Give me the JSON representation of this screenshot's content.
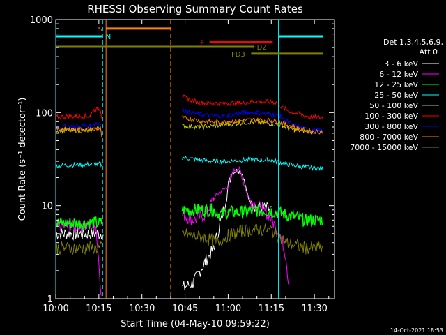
{
  "chart_data": {
    "type": "line",
    "title": "RHESSI Observing Summary Count Rates",
    "xlabel": "Start Time (04-May-10 09:59:22)",
    "ylabel": "Count Rate (s⁻¹ detector⁻¹)",
    "footer": "14-Oct-2021 18:53",
    "y_scale": "log",
    "ylim": [
      1,
      1000
    ],
    "xlim_minutes": [
      0,
      97
    ],
    "x_ticks": [
      {
        "m": 0,
        "label": "10:00"
      },
      {
        "m": 15,
        "label": "10:15"
      },
      {
        "m": 30,
        "label": "10:30"
      },
      {
        "m": 45,
        "label": "10:45"
      },
      {
        "m": 60,
        "label": "11:00"
      },
      {
        "m": 75,
        "label": "11:15"
      },
      {
        "m": 90,
        "label": "11:30"
      }
    ],
    "y_ticks": [
      {
        "v": 1,
        "label": "1"
      },
      {
        "v": 10,
        "label": "10"
      },
      {
        "v": 100,
        "label": "100"
      },
      {
        "v": 1000,
        "label": "1000"
      }
    ],
    "legend_header": [
      "Det 1,3,4,5,6,9,",
      "Att 0"
    ],
    "series": [
      {
        "name": "3 - 6 keV",
        "color": "#ffffff",
        "points": [
          [
            0,
            5
          ],
          [
            16.5,
            5
          ],
          [
            16.5,
            null
          ],
          [
            43.5,
            null
          ],
          [
            44,
            1.3
          ],
          [
            48,
            1.5
          ],
          [
            52,
            2.5
          ],
          [
            55,
            3.5
          ],
          [
            58,
            8
          ],
          [
            61,
            22
          ],
          [
            63,
            24
          ],
          [
            65,
            22
          ],
          [
            67,
            12
          ],
          [
            69,
            10
          ],
          [
            72,
            9.5
          ],
          [
            75,
            9
          ]
        ]
      },
      {
        "name": "6 - 12 keV",
        "color": "#ff00ff",
        "points": [
          [
            0,
            6
          ],
          [
            14,
            6
          ],
          [
            16,
            1
          ],
          [
            16.5,
            null
          ],
          [
            43.5,
            null
          ],
          [
            44,
            8
          ],
          [
            48,
            7
          ],
          [
            52,
            8
          ],
          [
            55,
            12
          ],
          [
            57,
            14
          ],
          [
            60,
            16
          ],
          [
            62,
            24
          ],
          [
            64,
            25
          ],
          [
            66,
            15
          ],
          [
            68,
            11
          ],
          [
            72,
            9
          ],
          [
            74,
            8
          ],
          [
            78,
            5
          ],
          [
            80,
            3
          ],
          [
            81,
            1.5
          ]
        ]
      },
      {
        "name": "12 - 25 keV",
        "color": "#00ff00",
        "points": [
          [
            0,
            6.5
          ],
          [
            16,
            6.5
          ],
          [
            16.5,
            null
          ],
          [
            43.5,
            null
          ],
          [
            44,
            9
          ],
          [
            55,
            9
          ],
          [
            57,
            8
          ],
          [
            60,
            8.5
          ],
          [
            65,
            8.5
          ],
          [
            70,
            8.8
          ],
          [
            75,
            8.8
          ],
          [
            80,
            8
          ],
          [
            87,
            7
          ],
          [
            93,
            7
          ]
        ]
      },
      {
        "name": "25 - 50 keV",
        "color": "#00ffff",
        "points": [
          [
            0,
            27
          ],
          [
            15.5,
            28
          ],
          [
            16,
            27
          ],
          [
            16.5,
            null
          ],
          [
            43.5,
            null
          ],
          [
            44,
            33
          ],
          [
            50,
            31
          ],
          [
            55,
            30
          ],
          [
            60,
            30
          ],
          [
            65,
            31
          ],
          [
            70,
            31
          ],
          [
            75,
            31
          ],
          [
            80,
            28
          ],
          [
            87,
            26
          ],
          [
            93,
            25
          ]
        ]
      },
      {
        "name": "50 - 100 keV",
        "color": "#c8c800",
        "points": [
          [
            0,
            64
          ],
          [
            12,
            64
          ],
          [
            15.5,
            70
          ],
          [
            16,
            63
          ],
          [
            16.5,
            null
          ],
          [
            43.5,
            null
          ],
          [
            44,
            72
          ],
          [
            50,
            70
          ],
          [
            55,
            72
          ],
          [
            60,
            75
          ],
          [
            65,
            78
          ],
          [
            70,
            79
          ],
          [
            75,
            76
          ],
          [
            79,
            72
          ],
          [
            83,
            65
          ],
          [
            88,
            63
          ],
          [
            93,
            62
          ]
        ]
      },
      {
        "name": "100 - 300 keV",
        "color": "#ff0000",
        "points": [
          [
            0,
            90
          ],
          [
            12,
            92
          ],
          [
            13,
            105
          ],
          [
            15.5,
            110
          ],
          [
            16,
            90
          ],
          [
            16.5,
            null
          ],
          [
            43.5,
            null
          ],
          [
            44,
            150
          ],
          [
            46,
            140
          ],
          [
            50,
            128
          ],
          [
            55,
            126
          ],
          [
            60,
            126
          ],
          [
            65,
            127
          ],
          [
            70,
            132
          ],
          [
            75,
            130
          ],
          [
            77,
            128
          ],
          [
            79,
            112
          ],
          [
            82,
            102
          ],
          [
            85,
            96
          ],
          [
            88,
            90
          ],
          [
            93,
            88
          ]
        ]
      },
      {
        "name": "300 - 800 keV",
        "color": "#0000ff",
        "points": [
          [
            0,
            70
          ],
          [
            12,
            72
          ],
          [
            14,
            78
          ],
          [
            15.5,
            74
          ],
          [
            16,
            60
          ],
          [
            16.5,
            null
          ],
          [
            43.5,
            null
          ],
          [
            44,
            108
          ],
          [
            46,
            102
          ],
          [
            50,
            96
          ],
          [
            55,
            92
          ],
          [
            60,
            93
          ],
          [
            65,
            100
          ],
          [
            70,
            100
          ],
          [
            75,
            96
          ],
          [
            78,
            92
          ],
          [
            80,
            82
          ],
          [
            83,
            72
          ],
          [
            88,
            66
          ],
          [
            93,
            63
          ]
        ]
      },
      {
        "name": "800 - 7000 keV",
        "color": "#ff8000",
        "points": [
          [
            0,
            66
          ],
          [
            12,
            66
          ],
          [
            15.5,
            68
          ],
          [
            16,
            55
          ],
          [
            16.5,
            null
          ],
          [
            43.5,
            null
          ],
          [
            44,
            88
          ],
          [
            48,
            84
          ],
          [
            52,
            80
          ],
          [
            56,
            79
          ],
          [
            60,
            80
          ],
          [
            65,
            82
          ],
          [
            70,
            84
          ],
          [
            75,
            82
          ],
          [
            78,
            80
          ],
          [
            80,
            75
          ],
          [
            84,
            68
          ],
          [
            88,
            64
          ],
          [
            93,
            62
          ]
        ]
      },
      {
        "name": "7000 - 15000 keV",
        "color": "#808000",
        "points": [
          [
            0,
            3.5
          ],
          [
            16,
            3.5
          ],
          [
            16.5,
            null
          ],
          [
            43.5,
            null
          ],
          [
            44,
            5
          ],
          [
            52,
            4.5
          ],
          [
            56,
            4
          ],
          [
            60,
            4.8
          ],
          [
            65,
            5.4
          ],
          [
            70,
            5.5
          ],
          [
            75,
            5.5
          ],
          [
            80,
            4
          ],
          [
            87,
            3.5
          ],
          [
            93,
            3.5
          ]
        ]
      }
    ],
    "state_bars": [
      {
        "label": "S",
        "color": "#ff8000",
        "value": 800,
        "start_m": 17.5,
        "end_m": 40,
        "label_m": 15.5
      },
      {
        "label": "N",
        "color": "#00ffff",
        "value": 660,
        "start_m": 0,
        "end_m": 16,
        "label_m": 18.3
      },
      {
        "label": "",
        "color": "#00ffff",
        "value": 660,
        "start_m": 77.5,
        "end_m": 93,
        "label_m": 0
      },
      {
        "label": "F",
        "color": "#ff0000",
        "value": 570,
        "start_m": 53.5,
        "end_m": 75.5,
        "label_m": 51
      },
      {
        "label": "FD2",
        "color": "#808000",
        "value": 510,
        "start_m": 0,
        "end_m": 69,
        "label_m": 71
      },
      {
        "label": "FD3",
        "color": "#808000",
        "value": 430,
        "start_m": 68,
        "end_m": 93,
        "label_m": 63.5
      }
    ],
    "vertical_markers": [
      {
        "m": 0,
        "color": "#00ffff",
        "dashed": false
      },
      {
        "m": 16.3,
        "color": "#00ffff",
        "dashed": true
      },
      {
        "m": 17.5,
        "color": "#ff8000",
        "dashed": false
      },
      {
        "m": 40,
        "color": "#ff8000",
        "dashed": true
      },
      {
        "m": 77.5,
        "color": "#00ffff",
        "dashed": false
      },
      {
        "m": 93,
        "color": "#00ffff",
        "dashed": true
      }
    ]
  }
}
